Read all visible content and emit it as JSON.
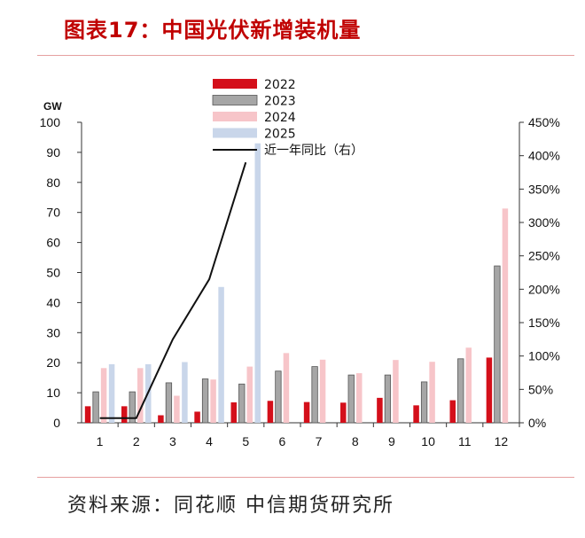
{
  "header": {
    "title": "图表17：中国光伏新增装机量"
  },
  "footer": {
    "source": "资料来源：同花顺 中信期货研究所"
  },
  "chart_data": {
    "type": "bar",
    "categories": [
      "1",
      "2",
      "3",
      "4",
      "5",
      "6",
      "7",
      "8",
      "9",
      "10",
      "11",
      "12"
    ],
    "y_unit": "GW",
    "ylim": [
      0,
      100
    ],
    "y_ticks": [
      "0",
      "10",
      "20",
      "30",
      "40",
      "50",
      "60",
      "70",
      "80",
      "90",
      "100"
    ],
    "y2lim": [
      0,
      4.5
    ],
    "y2_ticks": [
      "0%",
      "50%",
      "100%",
      "150%",
      "200%",
      "250%",
      "300%",
      "350%",
      "400%",
      "450%"
    ],
    "grid": false,
    "legend_position": "top-center",
    "series": [
      {
        "name": "2022",
        "kind": "bar",
        "color": "#d40f1a",
        "values": [
          5.5,
          5.5,
          2.5,
          3.7,
          6.8,
          7.3,
          6.9,
          6.7,
          8.3,
          5.8,
          7.5,
          21.7
        ]
      },
      {
        "name": "2023",
        "kind": "bar",
        "color": "#a6a6a6",
        "values": [
          10.3,
          10.3,
          13.3,
          14.6,
          12.9,
          17.2,
          18.7,
          15.9,
          15.9,
          13.6,
          21.3,
          52.2
        ]
      },
      {
        "name": "2024",
        "kind": "bar",
        "color": "#f7c5c9",
        "values": [
          18.2,
          18.2,
          9.0,
          14.4,
          18.7,
          23.2,
          21.0,
          16.5,
          20.9,
          20.3,
          25.0,
          71.3
        ]
      },
      {
        "name": "2025",
        "kind": "bar",
        "color": "#c9d6ea",
        "values": [
          19.5,
          19.5,
          20.2,
          45.2,
          93.0,
          null,
          null,
          null,
          null,
          null,
          null,
          null
        ]
      },
      {
        "name": "近一年同比（右）",
        "kind": "line",
        "axis": "right",
        "color": "#111111",
        "values": [
          0.07,
          0.07,
          1.25,
          2.15,
          3.9,
          null,
          null,
          null,
          null,
          null,
          null,
          null
        ]
      }
    ]
  }
}
